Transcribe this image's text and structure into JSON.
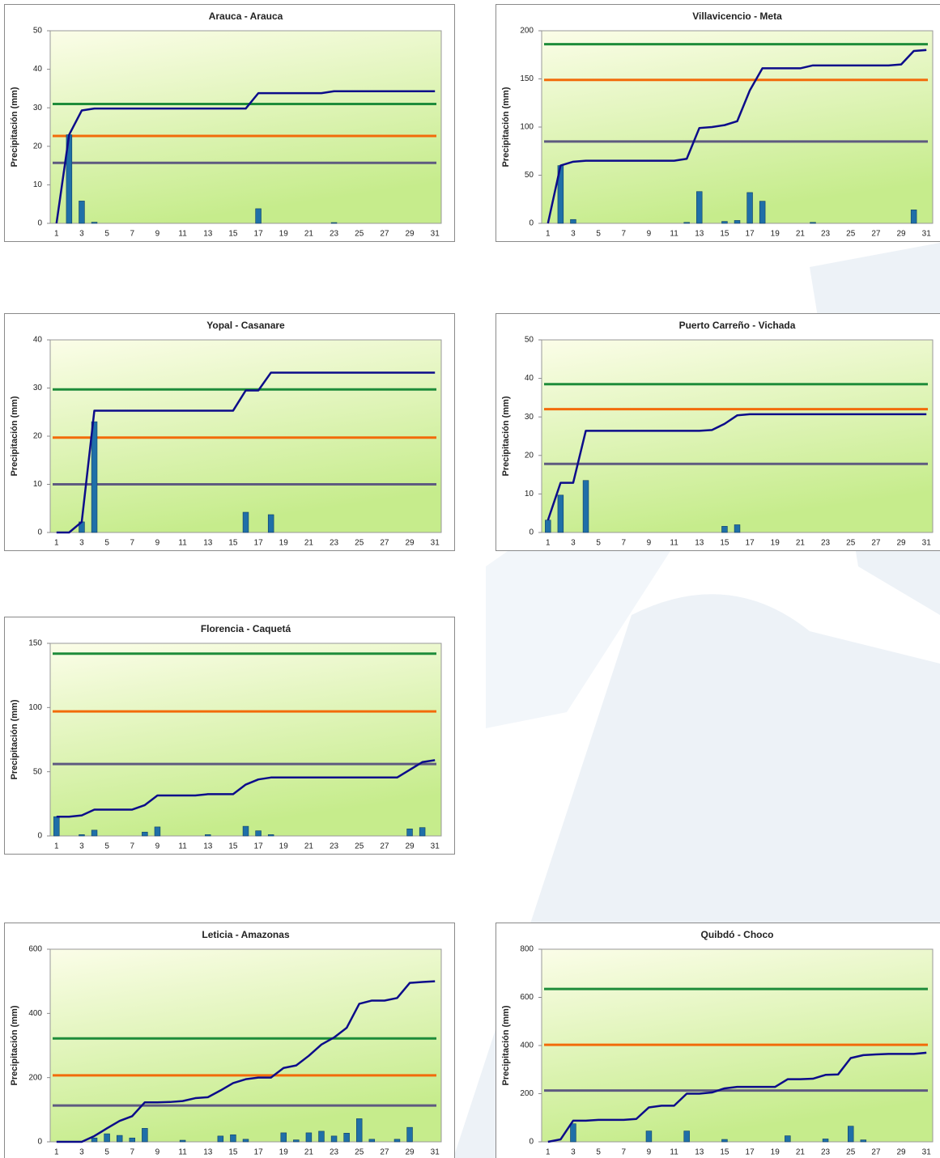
{
  "chart_data": [
    {
      "type": "bar_line",
      "title": "Arauca - Arauca",
      "y_label": "Precipitación (mm)",
      "categories": [
        1,
        null,
        3,
        null,
        5,
        null,
        7,
        null,
        9,
        null,
        11,
        null,
        13,
        null,
        15,
        null,
        17,
        null,
        19,
        null,
        21,
        null,
        23,
        null,
        25,
        null,
        27,
        null,
        29,
        null,
        31
      ],
      "ylim": [
        0,
        50
      ],
      "yticks": [
        0,
        10,
        20,
        30,
        40,
        50
      ],
      "series": [
        {
          "type": "bar",
          "color": "#1f6fa8",
          "values": [
            0,
            23,
            5.8,
            0.3,
            0,
            0,
            0,
            0,
            0,
            0,
            0,
            0,
            0,
            0,
            0,
            0,
            3.8,
            0,
            0,
            0,
            0,
            0,
            0.2,
            0,
            0,
            0,
            0,
            0,
            0,
            0,
            0
          ]
        },
        {
          "type": "line",
          "color": "#0c0c8a",
          "values": [
            0,
            23,
            29.3,
            29.8,
            29.8,
            29.8,
            29.8,
            29.8,
            29.8,
            29.8,
            29.8,
            29.8,
            29.8,
            29.8,
            29.8,
            29.8,
            33.8,
            33.8,
            33.8,
            33.8,
            33.8,
            33.8,
            34.3,
            34.3,
            34.3,
            34.3,
            34.3,
            34.3,
            34.3,
            34.3,
            34.3
          ]
        }
      ],
      "hlines": [
        {
          "value": 31,
          "color": "#1e8c3a"
        },
        {
          "value": 22.7,
          "color": "#f26b0a"
        },
        {
          "value": 15.7,
          "color": "#5e5a80"
        }
      ]
    },
    {
      "type": "bar_line",
      "title": "Villavicencio - Meta",
      "y_label": "Precipitación (mm)",
      "categories": [
        1,
        null,
        3,
        null,
        5,
        null,
        7,
        null,
        9,
        null,
        11,
        null,
        13,
        null,
        15,
        null,
        17,
        null,
        19,
        null,
        21,
        null,
        23,
        null,
        25,
        null,
        27,
        null,
        29,
        null,
        31
      ],
      "ylim": [
        0,
        200
      ],
      "yticks": [
        0,
        50,
        100,
        150,
        200
      ],
      "series": [
        {
          "type": "bar",
          "color": "#1f6fa8",
          "values": [
            0,
            60,
            4,
            0,
            0,
            0,
            0,
            0,
            0,
            0,
            0,
            1,
            33,
            0,
            2,
            3,
            32,
            23,
            0,
            0,
            0,
            1,
            0,
            0,
            0,
            0,
            0,
            0,
            0,
            14,
            0
          ]
        },
        {
          "type": "line",
          "color": "#0c0c8a",
          "values": [
            0,
            60,
            64,
            65,
            65,
            65,
            65,
            65,
            65,
            65,
            65,
            67,
            99,
            100,
            102,
            106,
            138,
            161,
            161,
            161,
            161,
            164,
            164,
            164,
            164,
            164,
            164,
            164,
            165,
            179,
            180
          ]
        }
      ],
      "hlines": [
        {
          "value": 186,
          "color": "#1e8c3a"
        },
        {
          "value": 149,
          "color": "#f26b0a"
        },
        {
          "value": 85,
          "color": "#5e5a80"
        }
      ]
    },
    {
      "type": "bar_line",
      "title": "Yopal - Casanare",
      "y_label": "Precipitación (mm)",
      "categories": [
        1,
        null,
        3,
        null,
        5,
        null,
        7,
        null,
        9,
        null,
        11,
        null,
        13,
        null,
        15,
        null,
        17,
        null,
        19,
        null,
        21,
        null,
        23,
        null,
        25,
        null,
        27,
        null,
        29,
        null,
        31
      ],
      "ylim": [
        0,
        40
      ],
      "yticks": [
        0,
        10,
        20,
        30,
        40
      ],
      "series": [
        {
          "type": "bar",
          "color": "#1f6fa8",
          "values": [
            0,
            0,
            2.2,
            23,
            0,
            0,
            0,
            0,
            0,
            0,
            0,
            0,
            0,
            0,
            0,
            4.2,
            0,
            3.7,
            0,
            0,
            0,
            0,
            0,
            0,
            0,
            0,
            0,
            0,
            0,
            0,
            0
          ]
        },
        {
          "type": "line",
          "color": "#0c0c8a",
          "values": [
            0,
            0,
            2.2,
            25.3,
            25.3,
            25.3,
            25.3,
            25.3,
            25.3,
            25.3,
            25.3,
            25.3,
            25.3,
            25.3,
            25.3,
            29.5,
            29.5,
            33.2,
            33.2,
            33.2,
            33.2,
            33.2,
            33.2,
            33.2,
            33.2,
            33.2,
            33.2,
            33.2,
            33.2,
            33.2,
            33.2
          ]
        }
      ],
      "hlines": [
        {
          "value": 29.7,
          "color": "#1e8c3a"
        },
        {
          "value": 19.7,
          "color": "#f26b0a"
        },
        {
          "value": 10,
          "color": "#5e5a80"
        }
      ]
    },
    {
      "type": "bar_line",
      "title": "Puerto Carreño - Vichada",
      "y_label": "Precipitación (mm)",
      "categories": [
        1,
        null,
        3,
        null,
        5,
        null,
        7,
        null,
        9,
        null,
        11,
        null,
        13,
        null,
        15,
        null,
        17,
        null,
        19,
        null,
        21,
        null,
        23,
        null,
        25,
        null,
        27,
        null,
        29,
        null,
        31
      ],
      "ylim": [
        0,
        50
      ],
      "yticks": [
        0,
        10,
        20,
        30,
        40,
        50
      ],
      "series": [
        {
          "type": "bar",
          "color": "#1f6fa8",
          "values": [
            3.2,
            9.7,
            0,
            13.5,
            0,
            0,
            0,
            0,
            0,
            0,
            0,
            0,
            0,
            0,
            1.6,
            2,
            0,
            0,
            0,
            0,
            0,
            0,
            0,
            0,
            0,
            0,
            0,
            0,
            0,
            0,
            0
          ]
        },
        {
          "type": "line",
          "color": "#0c0c8a",
          "values": [
            3.2,
            12.9,
            12.9,
            26.4,
            26.4,
            26.4,
            26.4,
            26.4,
            26.4,
            26.4,
            26.4,
            26.4,
            26.4,
            26.6,
            28.2,
            30.4,
            30.7,
            30.7,
            30.7,
            30.7,
            30.7,
            30.7,
            30.7,
            30.7,
            30.7,
            30.7,
            30.7,
            30.7,
            30.7,
            30.7,
            30.7
          ]
        }
      ],
      "hlines": [
        {
          "value": 38.5,
          "color": "#1e8c3a"
        },
        {
          "value": 32,
          "color": "#f26b0a"
        },
        {
          "value": 17.8,
          "color": "#5e5a80"
        }
      ]
    },
    {
      "type": "bar_line",
      "title": "Florencia - Caquetá",
      "y_label": "Precipitación (mm)",
      "categories": [
        1,
        null,
        3,
        null,
        5,
        null,
        7,
        null,
        9,
        null,
        11,
        null,
        13,
        null,
        15,
        null,
        17,
        null,
        19,
        null,
        21,
        null,
        23,
        null,
        25,
        null,
        27,
        null,
        29,
        null,
        31
      ],
      "ylim": [
        0,
        150
      ],
      "yticks": [
        0,
        50,
        100,
        150
      ],
      "series": [
        {
          "type": "bar",
          "color": "#1f6fa8",
          "values": [
            15,
            0,
            1,
            4.5,
            0,
            0,
            0,
            3,
            7,
            0,
            0,
            0,
            1,
            0,
            0,
            7.5,
            4,
            1,
            0,
            0,
            0,
            0,
            0,
            0,
            0,
            0,
            0,
            0,
            5.5,
            6.5,
            0
          ]
        },
        {
          "type": "line",
          "color": "#0c0c8a",
          "values": [
            15,
            15,
            16,
            20.5,
            20.5,
            20.5,
            20.5,
            24,
            31.5,
            31.5,
            31.5,
            31.5,
            32.5,
            32.5,
            32.5,
            40,
            44,
            45.5,
            45.5,
            45.5,
            45.5,
            45.5,
            45.5,
            45.5,
            45.5,
            45.5,
            45.5,
            45.5,
            51.5,
            57.5,
            59
          ]
        }
      ],
      "hlines": [
        {
          "value": 142,
          "color": "#1e8c3a"
        },
        {
          "value": 97,
          "color": "#f26b0a"
        },
        {
          "value": 56,
          "color": "#5e5a80"
        }
      ]
    },
    {
      "type": "bar_line",
      "title": "Leticia - Amazonas",
      "y_label": "Precipitación (mm)",
      "categories": [
        1,
        null,
        3,
        null,
        5,
        null,
        7,
        null,
        9,
        null,
        11,
        null,
        13,
        null,
        15,
        null,
        17,
        null,
        19,
        null,
        21,
        null,
        23,
        null,
        25,
        null,
        27,
        null,
        29,
        null,
        31
      ],
      "ylim": [
        0,
        600
      ],
      "yticks": [
        0,
        200,
        400,
        600
      ],
      "series": [
        {
          "type": "bar",
          "color": "#1f6fa8",
          "values": [
            0,
            0,
            0,
            12,
            25,
            20,
            12,
            42,
            0,
            0,
            5,
            0,
            0,
            18,
            22,
            8,
            0,
            0,
            28,
            6,
            28,
            33,
            18,
            27,
            72,
            8,
            0,
            8,
            45,
            0,
            0
          ]
        },
        {
          "type": "line",
          "color": "#0c0c8a",
          "values": [
            0,
            0,
            0,
            18,
            42,
            65,
            80,
            123,
            123,
            124,
            127,
            136,
            139,
            160,
            183,
            195,
            200,
            200,
            230,
            238,
            268,
            303,
            325,
            355,
            430,
            440,
            440,
            448,
            495,
            498,
            500
          ]
        }
      ],
      "hlines": [
        {
          "value": 322,
          "color": "#1e8c3a"
        },
        {
          "value": 207,
          "color": "#f26b0a"
        },
        {
          "value": 113,
          "color": "#5e5a80"
        }
      ]
    },
    {
      "type": "bar_line",
      "title": "Quibdó - Choco",
      "y_label": "Precipitación (mm)",
      "categories": [
        1,
        null,
        3,
        null,
        5,
        null,
        7,
        null,
        9,
        null,
        11,
        null,
        13,
        null,
        15,
        null,
        17,
        null,
        19,
        null,
        21,
        null,
        23,
        null,
        25,
        null,
        27,
        null,
        29,
        null,
        31
      ],
      "ylim": [
        0,
        800
      ],
      "yticks": [
        0,
        200,
        400,
        600,
        800
      ],
      "series": [
        {
          "type": "bar",
          "color": "#1f6fa8",
          "values": [
            0,
            0,
            75,
            0,
            0,
            0,
            0,
            0,
            45,
            0,
            0,
            45,
            0,
            0,
            10,
            0,
            0,
            0,
            0,
            25,
            0,
            0,
            12,
            0,
            65,
            8,
            0,
            0,
            0,
            0,
            0
          ]
        },
        {
          "type": "line",
          "color": "#0c0c8a",
          "values": [
            0,
            10,
            88,
            88,
            91,
            91,
            91,
            95,
            143,
            150,
            150,
            200,
            200,
            205,
            222,
            228,
            228,
            228,
            228,
            260,
            260,
            262,
            278,
            280,
            348,
            360,
            363,
            365,
            365,
            365,
            370
          ]
        }
      ],
      "hlines": [
        {
          "value": 635,
          "color": "#1e8c3a"
        },
        {
          "value": 403,
          "color": "#f26b0a"
        },
        {
          "value": 213,
          "color": "#5e5a80"
        }
      ]
    }
  ]
}
